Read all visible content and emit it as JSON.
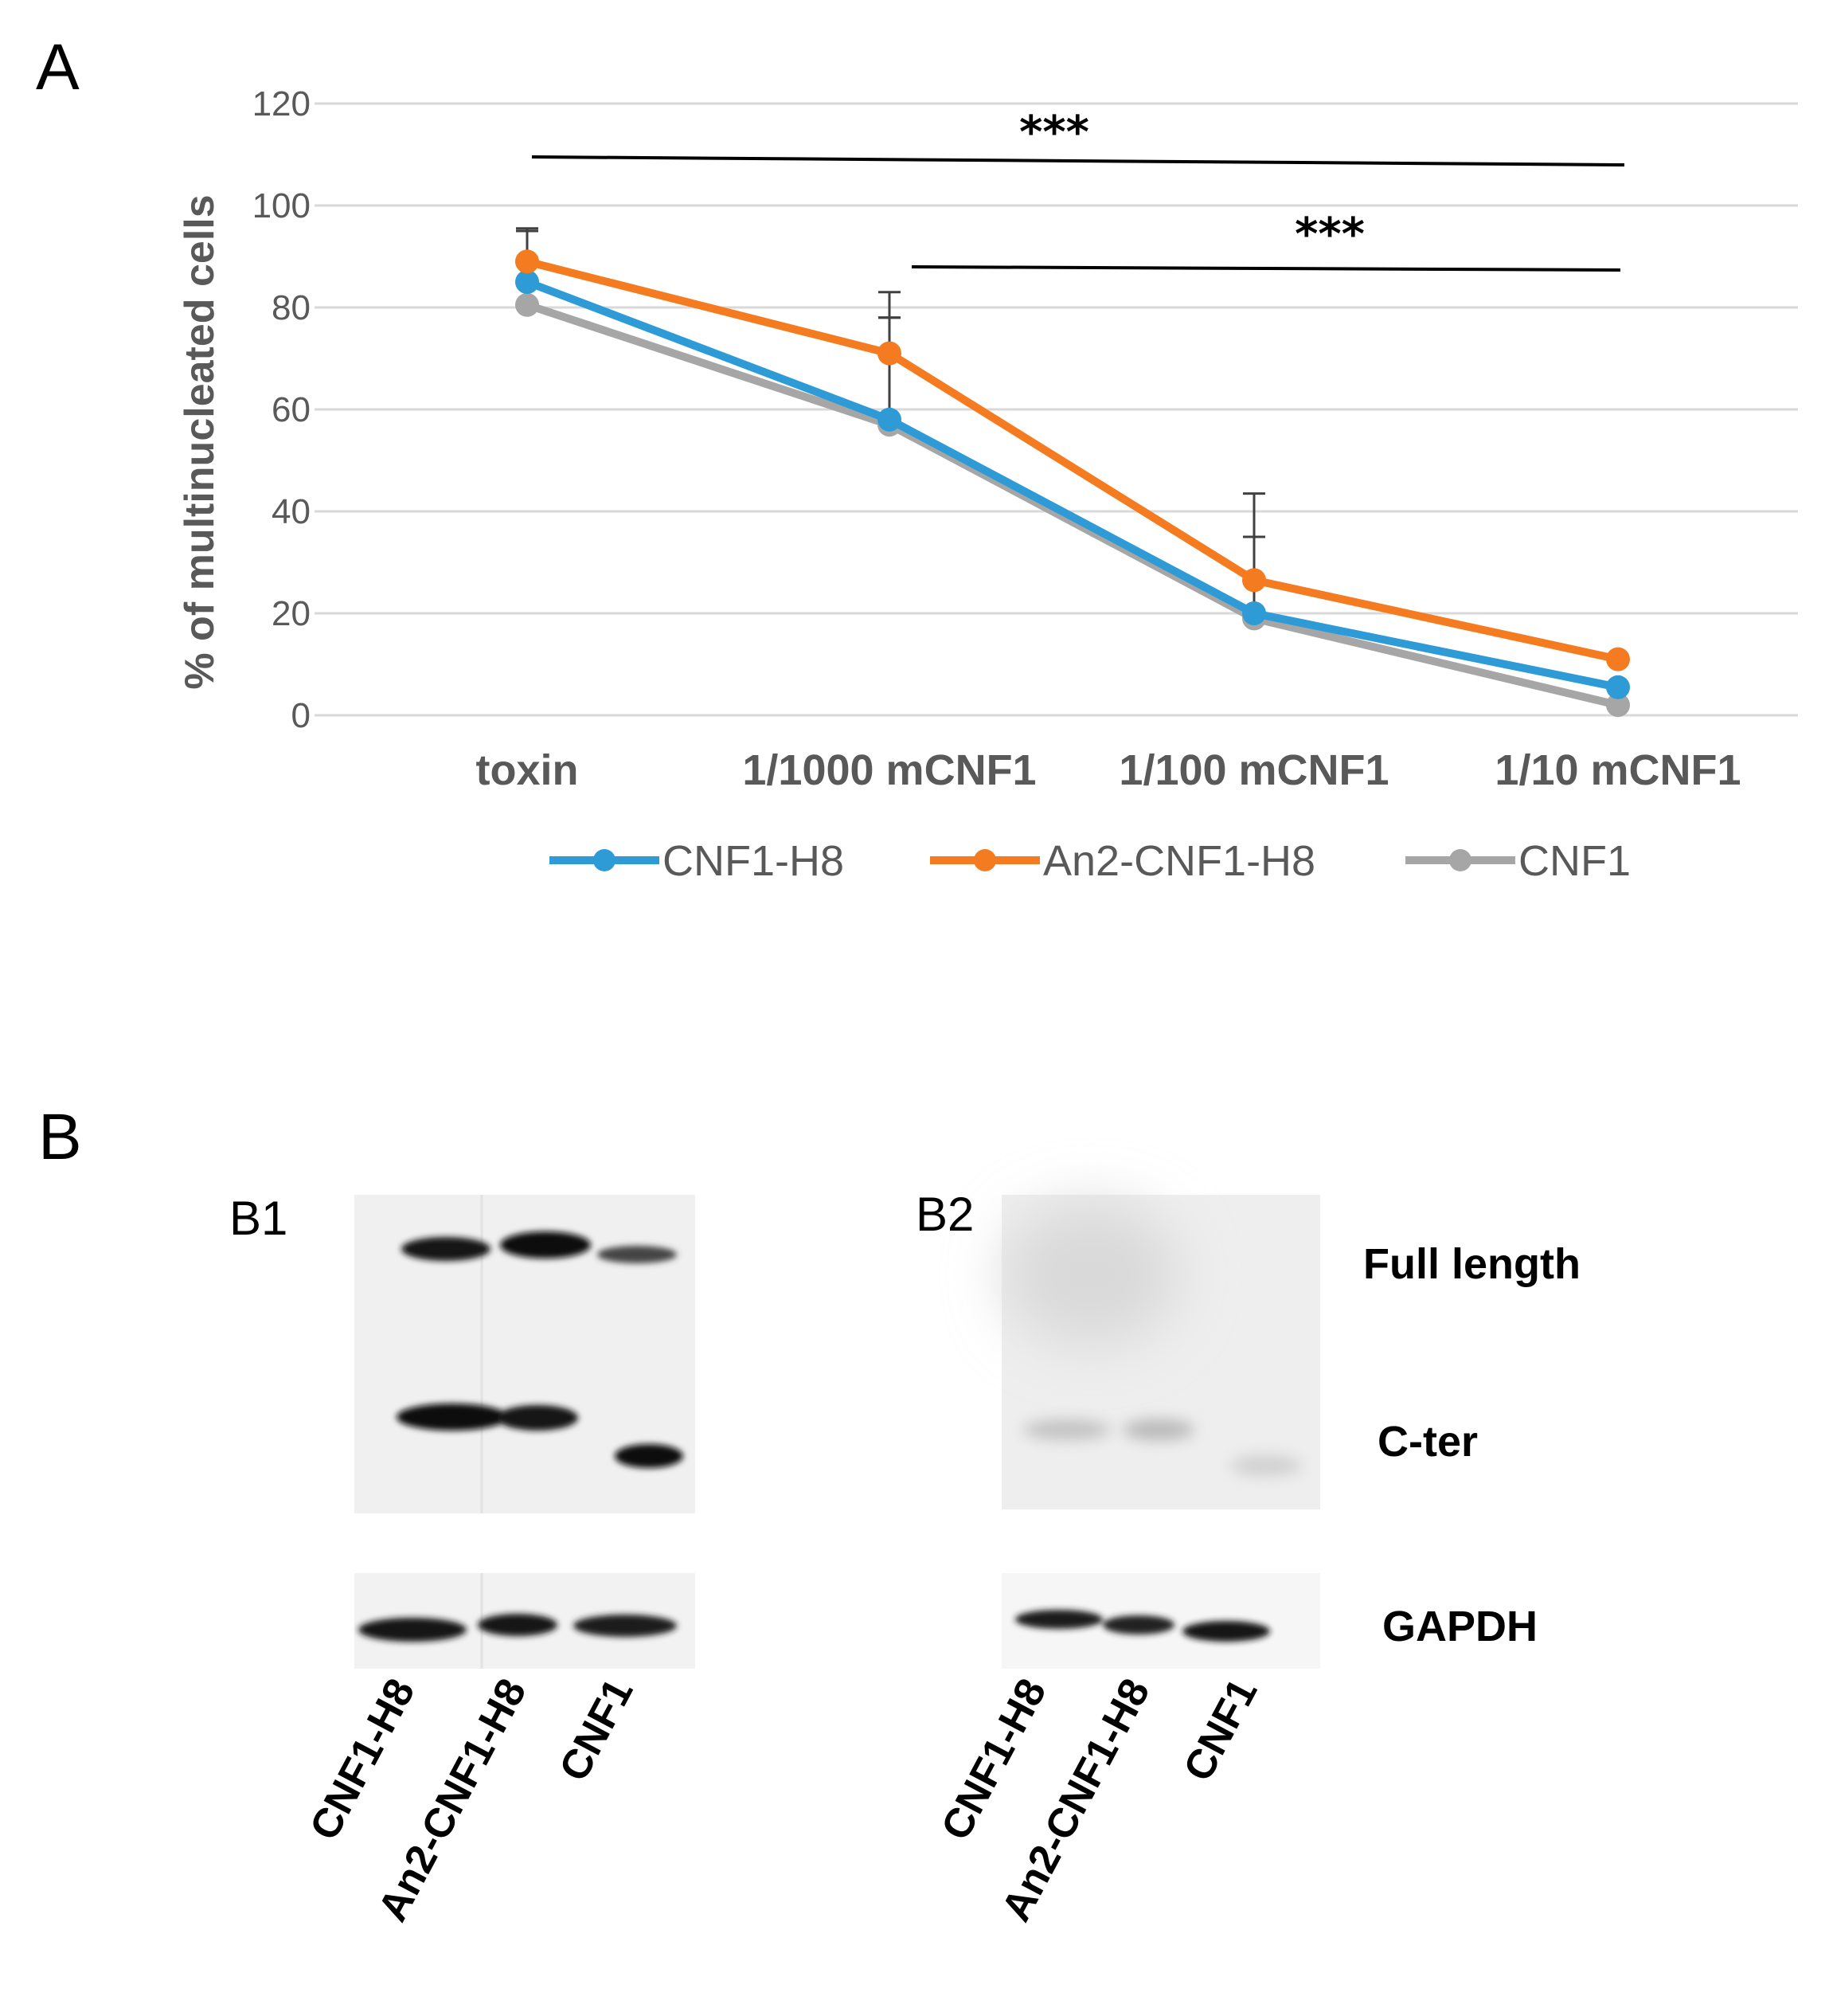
{
  "panel_a": {
    "letter": "A"
  },
  "panel_b": {
    "letter": "B",
    "blot_left": {
      "label": "B1",
      "bands": "top: 3 dark bands; middle: 3 dark bands (CNF1 lower); bottom GAPDH 3 bands"
    },
    "blot_right": {
      "label": "B2",
      "bands": "top: faint; middle: faint; bottom GAPDH 3 bands"
    },
    "band_labels": [
      "Full length",
      "C-ter",
      "GAPDH"
    ],
    "lanes": [
      "CNF1-H8",
      "An2-CNF1-H8",
      "CNF1"
    ]
  },
  "colors": {
    "CNF1-H8": "#2e9bd6",
    "An2-CNF1-H8": "#f47b20",
    "CNF1": "#a6a6a6",
    "grid": "#d9d9d9",
    "text": "#595959"
  },
  "chart_data": {
    "type": "line",
    "categories": [
      "toxin",
      "1/1000 mCNF1",
      "1/100 mCNF1",
      "1/10 mCNF1"
    ],
    "ylabel": "% of multinucleated cells",
    "ylim": [
      0,
      120
    ],
    "yticks": [
      0,
      20,
      40,
      60,
      80,
      100,
      120
    ],
    "grid": true,
    "legend_position": "bottom",
    "series": [
      {
        "name": "CNF1-H8",
        "values": [
          85,
          58,
          20,
          5.5
        ],
        "errors": [
          10,
          20,
          15,
          0
        ]
      },
      {
        "name": "An2-CNF1-H8",
        "values": [
          89,
          71,
          26.5,
          11
        ],
        "errors": [
          6,
          12,
          17,
          0
        ]
      },
      {
        "name": "CNF1",
        "values": [
          80.5,
          57,
          19,
          2
        ],
        "errors": [
          15,
          21,
          16,
          0
        ]
      }
    ],
    "annotations": [
      {
        "text": "***",
        "from": "toxin",
        "to": "1/10 mCNF1"
      },
      {
        "text": "***",
        "from": "1/1000 mCNF1",
        "to": "1/10 mCNF1"
      }
    ]
  }
}
